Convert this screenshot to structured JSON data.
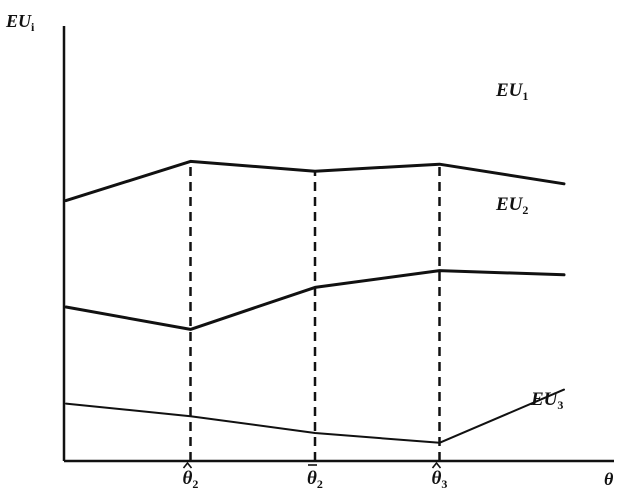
{
  "chart_data": {
    "type": "line",
    "ylabel": "EU_i",
    "ylabel_main": "EU",
    "ylabel_sub": "i",
    "xlabel": "θ",
    "x": [
      0,
      1,
      2,
      3,
      4
    ],
    "x_ticks": [
      {
        "x": 1,
        "label": "θ̂",
        "sub": "2",
        "mark": "hat"
      },
      {
        "x": 2,
        "label": "θ̄",
        "sub": "2",
        "mark": "bar"
      },
      {
        "x": 3,
        "label": "θ̂",
        "sub": "3",
        "mark": "hat"
      }
    ],
    "xlim": [
      0,
      4.65
    ],
    "ylim": [
      0,
      10
    ],
    "series": [
      {
        "name": "EU1",
        "label_main": "EU",
        "label_sub": "1",
        "values": [
          9.3,
          10.7,
          10.35,
          10.6,
          9.9
        ],
        "stroke": 3
      },
      {
        "name": "EU2",
        "label_main": "EU",
        "label_sub": "2",
        "values": [
          5.5,
          4.7,
          6.2,
          6.8,
          6.65
        ],
        "stroke": 3
      },
      {
        "name": "EU3",
        "label_main": "EU",
        "label_sub": "3",
        "values": [
          2.05,
          1.6,
          1.0,
          0.65,
          2.55
        ],
        "stroke": 2
      }
    ],
    "grid": false,
    "legend": "none"
  }
}
